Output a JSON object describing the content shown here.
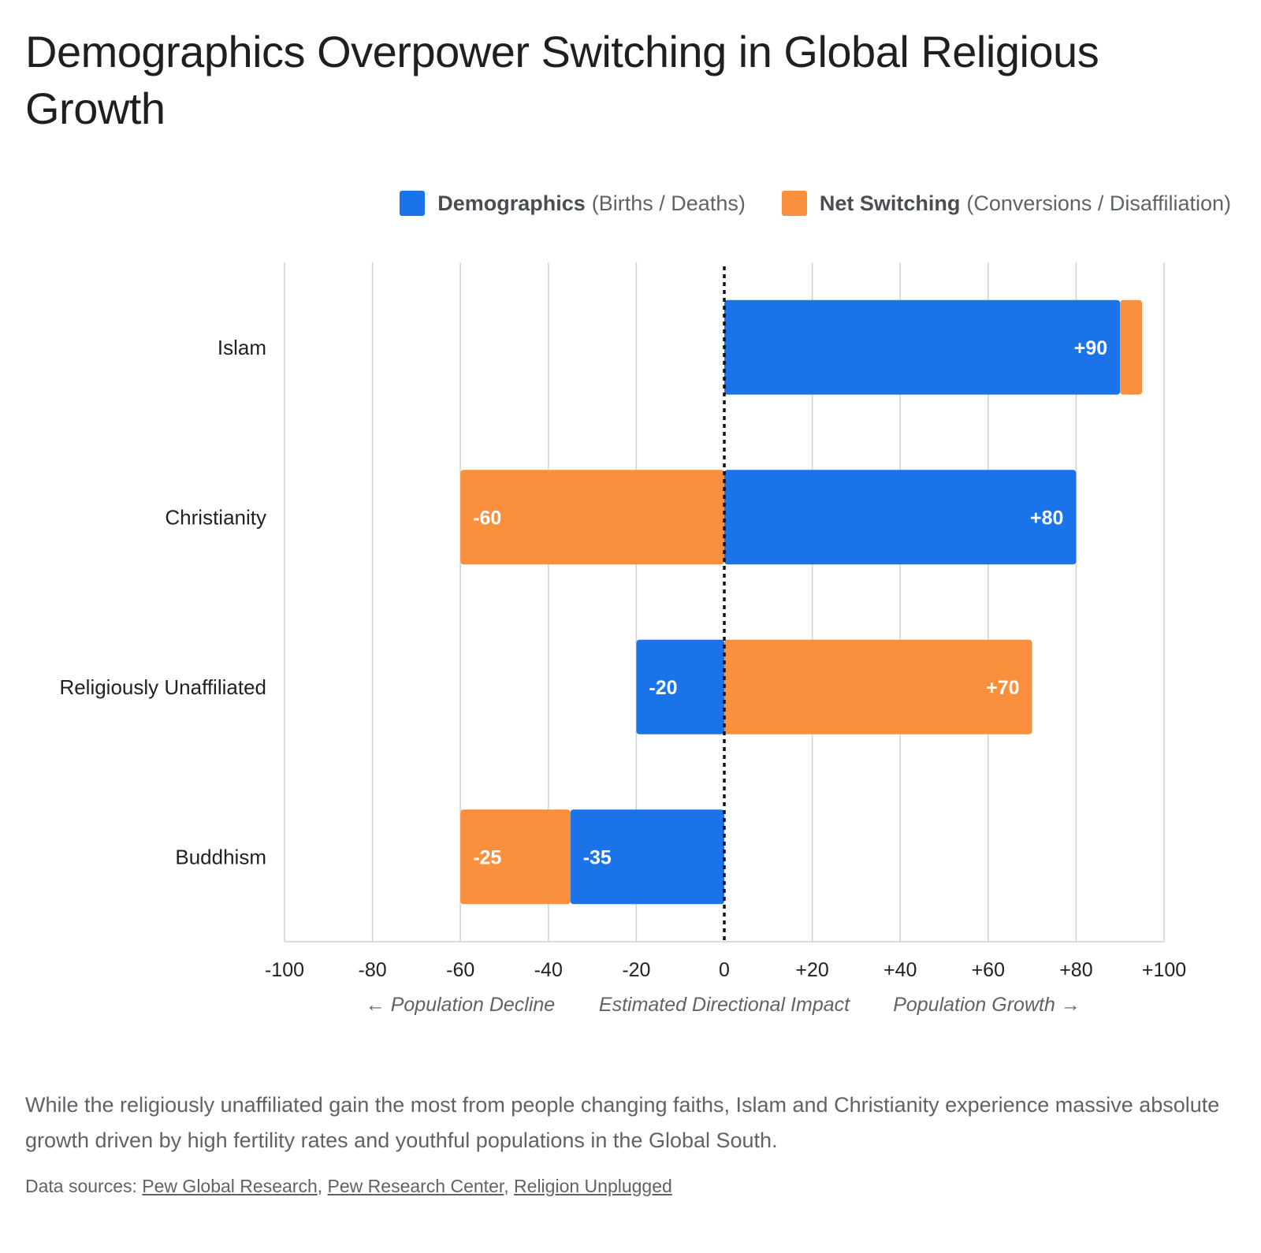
{
  "title": "Demographics Overpower Switching in Global Religious Growth",
  "legend": [
    {
      "name": "Demographics",
      "detail": "(Births / Deaths)",
      "color": "#1a73e8"
    },
    {
      "name": "Net Switching",
      "detail": "(Conversions / Disaffiliation)",
      "color": "#fa8f3e"
    }
  ],
  "chart_data": {
    "type": "bar",
    "orientation": "horizontal",
    "stacked": "diverging",
    "categories": [
      "Islam",
      "Christianity",
      "Religiously Unaffiliated",
      "Buddhism"
    ],
    "series": [
      {
        "name": "Demographics",
        "color": "#1a73e8",
        "values": [
          90,
          80,
          -20,
          -35
        ]
      },
      {
        "name": "Net Switching",
        "color": "#fa8f3e",
        "values": [
          5,
          -60,
          70,
          -25
        ]
      }
    ],
    "data_labels": {
      "Demographics": [
        "+90",
        "+80",
        "-20",
        "-35"
      ],
      "Net Switching": [
        "",
        "-60",
        "+70",
        "-25"
      ]
    },
    "xlim": [
      -100,
      100
    ],
    "xticks": [
      -100,
      -80,
      -60,
      -40,
      -20,
      0,
      20,
      40,
      60,
      80,
      100
    ],
    "xtick_labels": [
      "-100",
      "-80",
      "-60",
      "-40",
      "-20",
      "0",
      "+20",
      "+40",
      "+60",
      "+80",
      "+100"
    ],
    "xlabel": "Estimated Directional Impact",
    "xlabel_left": "← Population Decline",
    "xlabel_right": "Population Growth →",
    "grid": true,
    "zero_line": "dashed",
    "legend_position": "top-right"
  },
  "caption": "While the religiously unaffiliated gain the most from people changing faiths, Islam and Christianity experience massive absolute growth driven by high fertility rates and youthful populations in the Global South.",
  "sources": {
    "prefix": "Data sources:",
    "links": [
      "Pew Global Research",
      "Pew Research Center",
      "Religion Unplugged"
    ]
  }
}
